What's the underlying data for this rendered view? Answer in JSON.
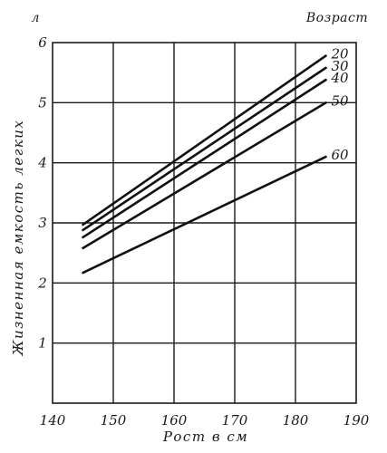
{
  "chart_data": {
    "type": "line",
    "title": "",
    "xlabel": "Рост в см",
    "ylabel": "Жизненная емкость легких",
    "y_unit": "л",
    "legend_title": "Возраст",
    "xlim": [
      140,
      190
    ],
    "ylim": [
      0,
      6
    ],
    "x_ticks": [
      140,
      150,
      160,
      170,
      180,
      190
    ],
    "y_ticks": [
      1,
      2,
      3,
      4,
      5,
      6
    ],
    "grid": true,
    "series": [
      {
        "name": "20",
        "x": [
          145,
          185
        ],
        "values": [
          2.97,
          5.78
        ]
      },
      {
        "name": "30",
        "x": [
          145,
          185
        ],
        "values": [
          2.88,
          5.58
        ]
      },
      {
        "name": "40",
        "x": [
          145,
          185
        ],
        "values": [
          2.76,
          5.38
        ]
      },
      {
        "name": "50",
        "x": [
          145,
          185
        ],
        "values": [
          2.58,
          5.0
        ]
      },
      {
        "name": "60",
        "x": [
          145,
          185
        ],
        "values": [
          2.17,
          4.1
        ]
      }
    ]
  }
}
